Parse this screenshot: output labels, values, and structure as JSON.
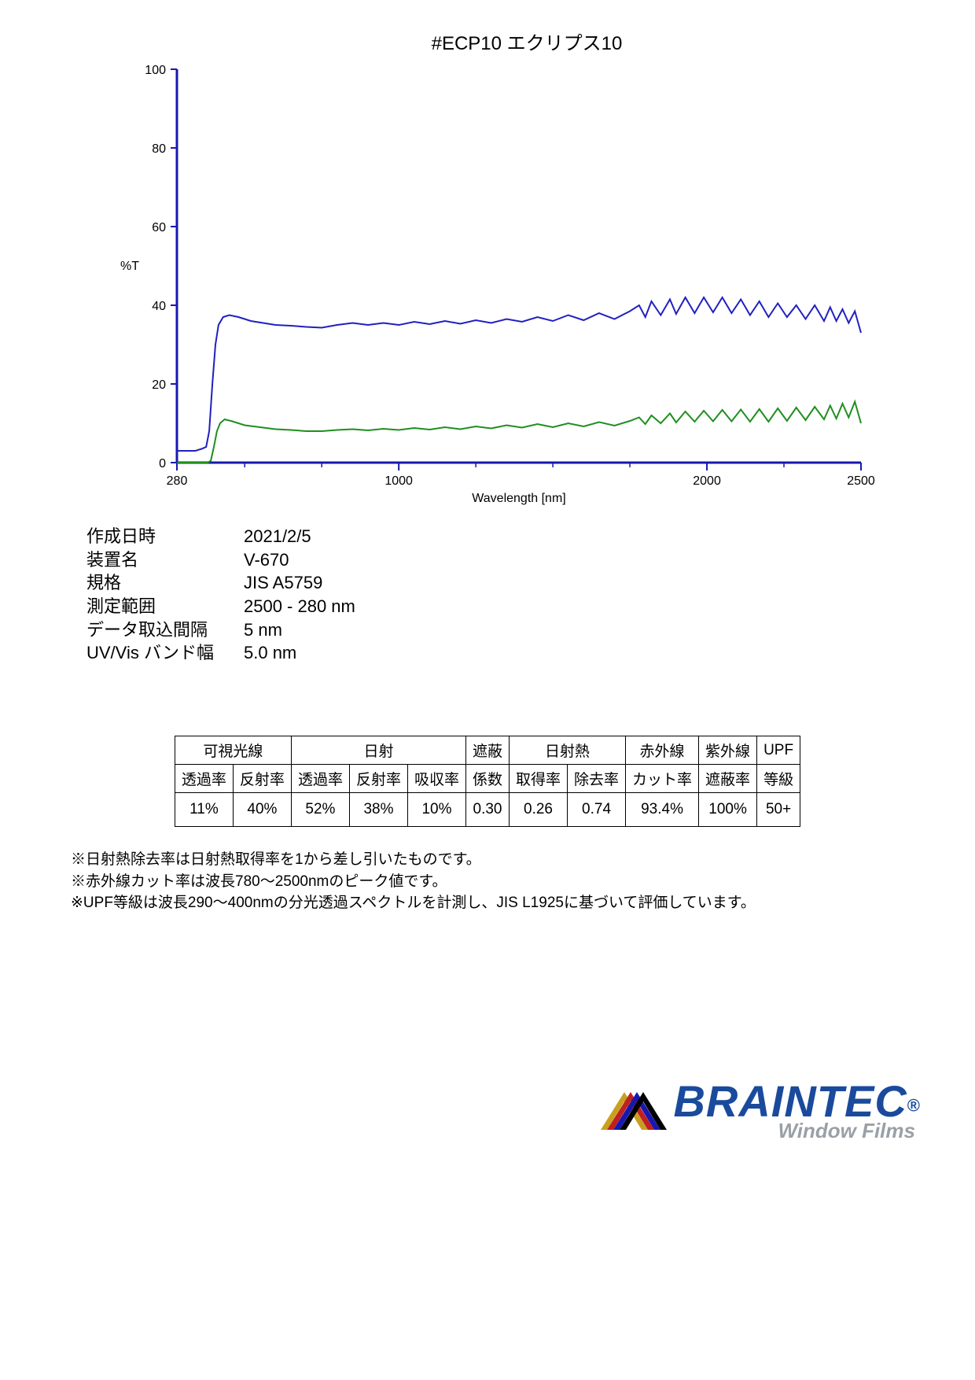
{
  "title": "#ECP10  エクリプス10",
  "chart": {
    "type": "line",
    "xlabel": "Wavelength [nm]",
    "ylabel": "%T",
    "xlim": [
      280,
      2500
    ],
    "ylim": [
      0,
      100
    ],
    "xticks": [
      280,
      1000,
      2000,
      2500
    ],
    "yticks": [
      0,
      20,
      40,
      60,
      80,
      100
    ],
    "background_color": "#ffffff",
    "axis_color": "#1818b0",
    "axis_width": 3,
    "tick_font_size": 16,
    "label_font_size": 16,
    "series": [
      {
        "name": "blue",
        "color": "#2020c0",
        "width": 2,
        "data": [
          [
            280,
            3
          ],
          [
            300,
            3
          ],
          [
            320,
            3
          ],
          [
            340,
            3
          ],
          [
            360,
            3.5
          ],
          [
            375,
            4
          ],
          [
            385,
            8
          ],
          [
            395,
            20
          ],
          [
            405,
            30
          ],
          [
            415,
            35
          ],
          [
            430,
            37
          ],
          [
            450,
            37.5
          ],
          [
            480,
            37
          ],
          [
            520,
            36
          ],
          [
            560,
            35.5
          ],
          [
            600,
            35
          ],
          [
            650,
            34.8
          ],
          [
            700,
            34.5
          ],
          [
            750,
            34.3
          ],
          [
            800,
            35
          ],
          [
            850,
            35.5
          ],
          [
            900,
            35
          ],
          [
            950,
            35.5
          ],
          [
            1000,
            35
          ],
          [
            1050,
            35.8
          ],
          [
            1100,
            35.2
          ],
          [
            1150,
            36
          ],
          [
            1200,
            35.3
          ],
          [
            1250,
            36.2
          ],
          [
            1300,
            35.5
          ],
          [
            1350,
            36.5
          ],
          [
            1400,
            35.8
          ],
          [
            1450,
            37
          ],
          [
            1500,
            36
          ],
          [
            1550,
            37.5
          ],
          [
            1600,
            36.2
          ],
          [
            1650,
            38
          ],
          [
            1700,
            36.5
          ],
          [
            1750,
            38.5
          ],
          [
            1780,
            40
          ],
          [
            1800,
            37
          ],
          [
            1820,
            41
          ],
          [
            1850,
            37.5
          ],
          [
            1880,
            41.5
          ],
          [
            1900,
            37.8
          ],
          [
            1930,
            42
          ],
          [
            1960,
            38
          ],
          [
            1990,
            42
          ],
          [
            2020,
            38.2
          ],
          [
            2050,
            42
          ],
          [
            2080,
            38
          ],
          [
            2110,
            41.5
          ],
          [
            2140,
            37.5
          ],
          [
            2170,
            41
          ],
          [
            2200,
            37
          ],
          [
            2230,
            40.5
          ],
          [
            2260,
            37
          ],
          [
            2290,
            40
          ],
          [
            2320,
            36.5
          ],
          [
            2350,
            40
          ],
          [
            2380,
            36
          ],
          [
            2400,
            39.5
          ],
          [
            2420,
            36
          ],
          [
            2440,
            39
          ],
          [
            2460,
            35.5
          ],
          [
            2480,
            38.5
          ],
          [
            2500,
            33
          ]
        ]
      },
      {
        "name": "green",
        "color": "#1f8f1f",
        "width": 2,
        "data": [
          [
            280,
            0
          ],
          [
            320,
            0
          ],
          [
            360,
            0
          ],
          [
            380,
            0
          ],
          [
            390,
            0.5
          ],
          [
            400,
            4
          ],
          [
            410,
            8
          ],
          [
            420,
            10
          ],
          [
            435,
            11
          ],
          [
            460,
            10.5
          ],
          [
            500,
            9.5
          ],
          [
            550,
            9
          ],
          [
            600,
            8.5
          ],
          [
            650,
            8.3
          ],
          [
            700,
            8
          ],
          [
            750,
            8
          ],
          [
            800,
            8.3
          ],
          [
            850,
            8.5
          ],
          [
            900,
            8.2
          ],
          [
            950,
            8.6
          ],
          [
            1000,
            8.3
          ],
          [
            1050,
            8.8
          ],
          [
            1100,
            8.4
          ],
          [
            1150,
            9
          ],
          [
            1200,
            8.5
          ],
          [
            1250,
            9.2
          ],
          [
            1300,
            8.7
          ],
          [
            1350,
            9.5
          ],
          [
            1400,
            8.9
          ],
          [
            1450,
            9.8
          ],
          [
            1500,
            9
          ],
          [
            1550,
            10
          ],
          [
            1600,
            9.2
          ],
          [
            1650,
            10.3
          ],
          [
            1700,
            9.4
          ],
          [
            1750,
            10.6
          ],
          [
            1780,
            11.5
          ],
          [
            1800,
            9.8
          ],
          [
            1820,
            12
          ],
          [
            1850,
            10
          ],
          [
            1880,
            12.5
          ],
          [
            1900,
            10.2
          ],
          [
            1930,
            13
          ],
          [
            1960,
            10.4
          ],
          [
            1990,
            13.2
          ],
          [
            2020,
            10.5
          ],
          [
            2050,
            13.4
          ],
          [
            2080,
            10.5
          ],
          [
            2110,
            13.5
          ],
          [
            2140,
            10.4
          ],
          [
            2170,
            13.6
          ],
          [
            2200,
            10.4
          ],
          [
            2230,
            13.8
          ],
          [
            2260,
            10.6
          ],
          [
            2290,
            14
          ],
          [
            2320,
            10.8
          ],
          [
            2350,
            14.2
          ],
          [
            2380,
            11
          ],
          [
            2400,
            14.5
          ],
          [
            2420,
            11.2
          ],
          [
            2440,
            15
          ],
          [
            2460,
            11.5
          ],
          [
            2480,
            15.5
          ],
          [
            2500,
            10
          ]
        ]
      }
    ]
  },
  "meta": {
    "rows": [
      {
        "label": "作成日時",
        "value": "2021/2/5"
      },
      {
        "label": "装置名",
        "value": "V-670"
      },
      {
        "label": "規格",
        "value": "JIS A5759"
      },
      {
        "label": "測定範囲",
        "value": "2500 - 280 nm"
      },
      {
        "label": "データ取込間隔",
        "value": "5 nm"
      },
      {
        "label": "UV/Vis バンド幅",
        "value": "5.0 nm"
      }
    ]
  },
  "table": {
    "group_headers": [
      {
        "label": "可視光線",
        "span": 2
      },
      {
        "label": "日射",
        "span": 3
      },
      {
        "label": "遮蔽",
        "span": 1
      },
      {
        "label": "日射熱",
        "span": 2
      },
      {
        "label": "赤外線",
        "span": 1
      },
      {
        "label": "紫外線",
        "span": 1
      },
      {
        "label": "UPF",
        "span": 1
      }
    ],
    "sub_headers": [
      "透過率",
      "反射率",
      "透過率",
      "反射率",
      "吸収率",
      "係数",
      "取得率",
      "除去率",
      "カット率",
      "遮蔽率",
      "等級"
    ],
    "row": [
      "11%",
      "40%",
      "52%",
      "38%",
      "10%",
      "0.30",
      "0.26",
      "0.74",
      "93.4%",
      "100%",
      "50+"
    ]
  },
  "notes": [
    "※日射熱除去率は日射熱取得率を1から差し引いたものです。",
    "※赤外線カット率は波長780～2500nmのピーク値です。",
    "※UPF等級は波長290～400nmの分光透過スペクトルを計測し、JIS L1925に基づいて評価しています。"
  ],
  "logo": {
    "main": "BRAINTEC",
    "reg": "®",
    "sub": "Window Films",
    "stripes": [
      "#c8a020",
      "#c02020",
      "#1818b0",
      "#000000"
    ]
  }
}
